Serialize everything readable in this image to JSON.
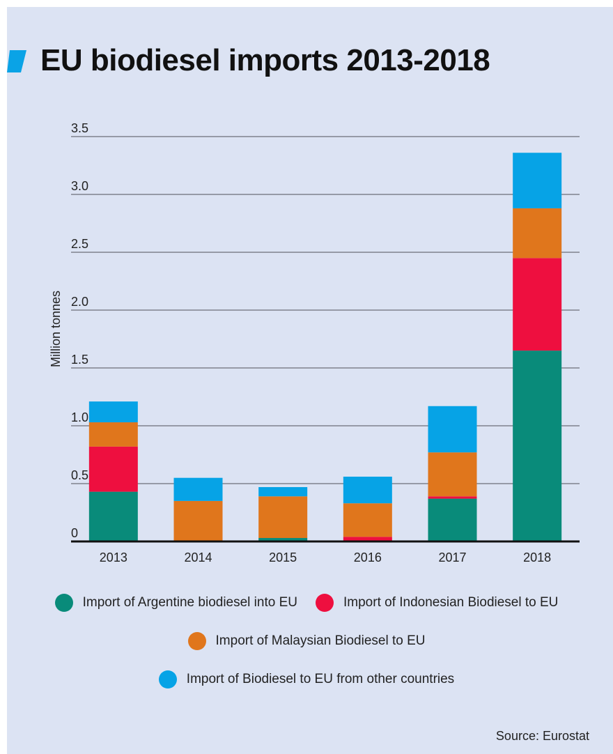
{
  "header": {
    "title": "EU biodiesel imports 2013-2018",
    "mark_color": "#0aa3e6"
  },
  "chart_data": {
    "type": "bar",
    "stacked": true,
    "categories": [
      "2013",
      "2014",
      "2015",
      "2016",
      "2017",
      "2018"
    ],
    "series": [
      {
        "name": "Import of Argentine biodiesel into EU",
        "color": "#098b7a",
        "values": [
          0.43,
          0.0,
          0.03,
          0.0,
          0.37,
          1.65
        ]
      },
      {
        "name": "Import of Indonesian Biodiesel to EU",
        "color": "#ee0f3f",
        "values": [
          0.39,
          0.0,
          0.0,
          0.04,
          0.02,
          0.8
        ]
      },
      {
        "name": "Import of Malaysian Biodiesel to EU",
        "color": "#e0761c",
        "values": [
          0.21,
          0.35,
          0.36,
          0.29,
          0.38,
          0.43
        ]
      },
      {
        "name": "Import of Biodiesel to EU from other countries",
        "color": "#06a3e6",
        "values": [
          0.18,
          0.2,
          0.08,
          0.23,
          0.4,
          0.48
        ]
      }
    ],
    "ylabel": "Million tonnes",
    "xlabel": "",
    "ylim": [
      0,
      3.5
    ],
    "yticks": [
      "0",
      "0.5",
      "1.0",
      "1.5",
      "2.0",
      "2.5",
      "3.0",
      "3.5"
    ],
    "ytick_values": [
      0,
      0.5,
      1.0,
      1.5,
      2.0,
      2.5,
      3.0,
      3.5
    ],
    "grid": true,
    "legend_position": "bottom"
  },
  "footer": {
    "source": "Source: Eurostat"
  }
}
